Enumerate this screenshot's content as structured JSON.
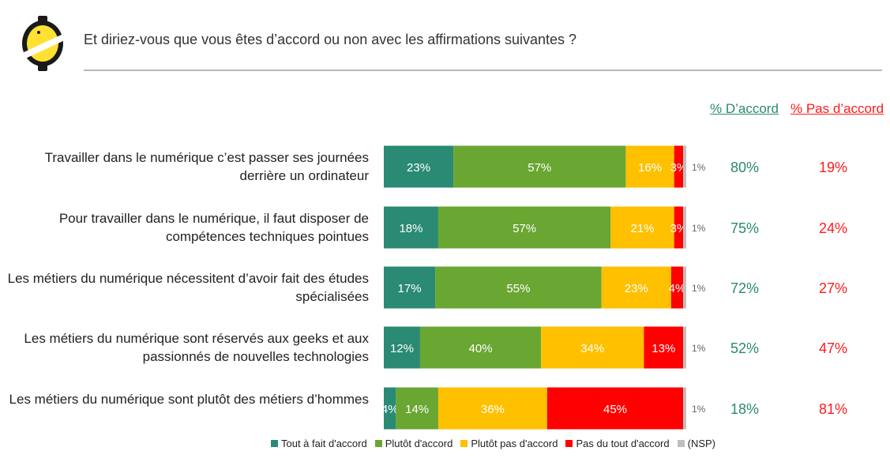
{
  "header": {
    "title": "Et diriez-vous que vous êtes d’accord ou non avec les affirmations suivantes ?"
  },
  "columns": {
    "agree_label": "% D’accord",
    "disagree_label": "% Pas d’accord"
  },
  "colors": {
    "tout_a_fait": "#2a8a73",
    "plutot": "#6aa632",
    "plutot_pas": "#ffc000",
    "pas_du_tout": "#ff0000",
    "nsp": "#bfbfbf",
    "agree_text": "#2a8a6e",
    "disagree_text": "#ff1a1a"
  },
  "chart_data": {
    "type": "bar",
    "orientation": "horizontal",
    "stacked": true,
    "xlim": [
      0,
      100
    ],
    "grid": false,
    "legend_position": "bottom",
    "categories": [
      "Travailler dans le numérique c’est passer ses journées derrière un ordinateur",
      "Pour travailler dans le numérique, il faut disposer de compétences techniques pointues",
      "Les métiers du numérique nécessitent d’avoir fait des études spécialisées",
      "Les métiers du numérique sont réservés aux geeks et aux passionnés de nouvelles technologies",
      "Les métiers du numérique sont plutôt des métiers d’hommes"
    ],
    "series": [
      {
        "name": "Tout à fait d'accord",
        "values": [
          23,
          18,
          17,
          12,
          4
        ]
      },
      {
        "name": "Plutôt d'accord",
        "values": [
          57,
          57,
          55,
          40,
          14
        ]
      },
      {
        "name": "Plutôt pas d'accord",
        "values": [
          16,
          21,
          23,
          34,
          36
        ]
      },
      {
        "name": "Pas du tout d'accord",
        "values": [
          3,
          3,
          4,
          13,
          45
        ]
      },
      {
        "name": "(NSP)",
        "values": [
          1,
          1,
          1,
          1,
          1
        ]
      }
    ],
    "totals": {
      "agree": [
        "80%",
        "75%",
        "72%",
        "52%",
        "18%"
      ],
      "disagree": [
        "19%",
        "24%",
        "27%",
        "47%",
        "81%"
      ]
    }
  }
}
